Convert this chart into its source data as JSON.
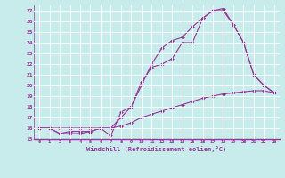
{
  "xlabel": "Windchill (Refroidissement éolien,°C)",
  "bg_color": "#c8ecec",
  "line_color": "#993399",
  "grid_color": "#ffffff",
  "xlim": [
    -0.5,
    23.5
  ],
  "ylim": [
    15,
    27.5
  ],
  "xticks": [
    0,
    1,
    2,
    3,
    4,
    5,
    6,
    7,
    8,
    9,
    10,
    11,
    12,
    13,
    14,
    15,
    16,
    17,
    18,
    19,
    20,
    21,
    22,
    23
  ],
  "yticks": [
    15,
    16,
    17,
    18,
    19,
    20,
    21,
    22,
    23,
    24,
    25,
    26,
    27
  ],
  "series": [
    {
      "x": [
        0,
        1,
        2,
        3,
        4,
        5,
        6,
        7,
        8,
        9,
        10,
        11,
        12,
        13,
        14,
        15,
        16,
        17,
        18,
        19,
        20,
        21,
        22,
        23
      ],
      "y": [
        16.0,
        16.0,
        16.0,
        16.0,
        16.0,
        16.0,
        16.0,
        16.0,
        16.2,
        16.5,
        17.0,
        17.3,
        17.6,
        17.9,
        18.2,
        18.5,
        18.8,
        19.0,
        19.2,
        19.3,
        19.4,
        19.5,
        19.5,
        19.3
      ]
    },
    {
      "x": [
        0,
        1,
        2,
        3,
        4,
        5,
        6,
        7,
        8,
        9,
        10,
        11,
        12,
        13,
        14,
        15,
        16,
        17,
        18,
        19,
        20,
        21,
        22,
        23
      ],
      "y": [
        16.0,
        16.0,
        15.5,
        15.7,
        15.7,
        15.7,
        16.0,
        15.3,
        17.5,
        18.0,
        20.3,
        21.7,
        22.0,
        22.5,
        24.0,
        24.0,
        26.3,
        27.0,
        27.0,
        25.7,
        24.0,
        21.0,
        20.0,
        19.3
      ]
    },
    {
      "x": [
        0,
        1,
        2,
        3,
        4,
        5,
        6,
        7,
        8,
        9,
        10,
        11,
        12,
        13,
        14,
        15,
        16,
        17,
        18,
        19,
        20,
        21,
        22,
        23
      ],
      "y": [
        16.0,
        16.0,
        15.5,
        15.5,
        15.5,
        15.7,
        16.0,
        16.0,
        17.0,
        18.0,
        20.0,
        22.0,
        23.5,
        24.2,
        24.5,
        25.5,
        26.3,
        27.0,
        27.2,
        25.7,
        24.0,
        21.0,
        20.0,
        19.3
      ]
    }
  ]
}
